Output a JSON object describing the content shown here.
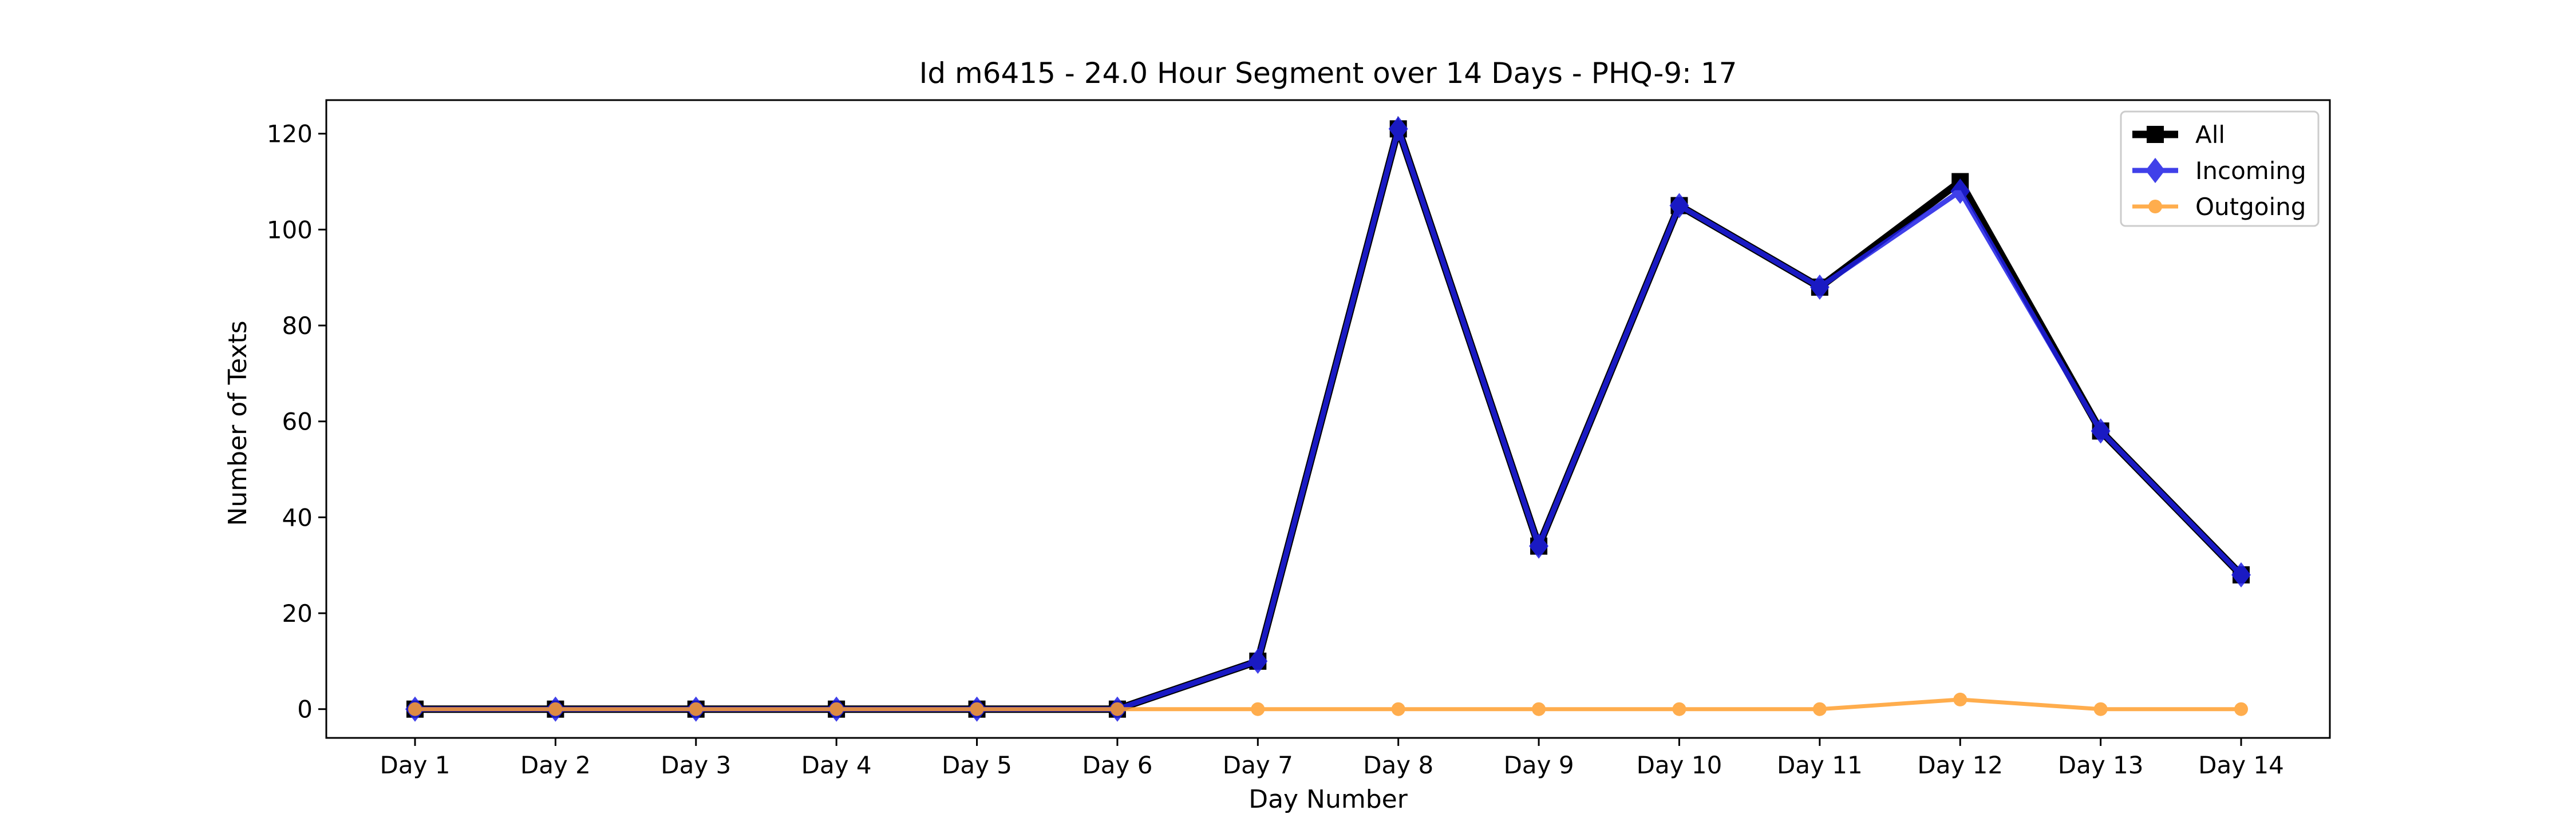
{
  "chart_data": {
    "type": "line",
    "title": "Id m6415 - 24.0 Hour Segment over 14 Days - PHQ-9: 17",
    "xlabel": "Day Number",
    "ylabel": "Number of Texts",
    "categories": [
      "Day 1",
      "Day 2",
      "Day 3",
      "Day 4",
      "Day 5",
      "Day 6",
      "Day 7",
      "Day 8",
      "Day 9",
      "Day 10",
      "Day 11",
      "Day 12",
      "Day 13",
      "Day 14"
    ],
    "ylim": [
      -6,
      127
    ],
    "yticks": [
      0,
      20,
      40,
      60,
      80,
      100,
      120
    ],
    "grid": false,
    "legend_position": "top-right",
    "series": [
      {
        "name": "All",
        "color": "#000000",
        "marker": "square",
        "values": [
          0,
          0,
          0,
          0,
          0,
          0,
          10,
          121,
          34,
          105,
          88,
          110,
          58,
          28
        ]
      },
      {
        "name": "Incoming",
        "color": "#1f1fe6",
        "marker": "diamond",
        "values": [
          0,
          0,
          0,
          0,
          0,
          0,
          10,
          121,
          34,
          105,
          88,
          108,
          58,
          28
        ]
      },
      {
        "name": "Outgoing",
        "color": "#ff9f2e",
        "marker": "circle",
        "values": [
          0,
          0,
          0,
          0,
          0,
          0,
          0,
          0,
          0,
          0,
          0,
          2,
          0,
          0
        ]
      }
    ]
  }
}
